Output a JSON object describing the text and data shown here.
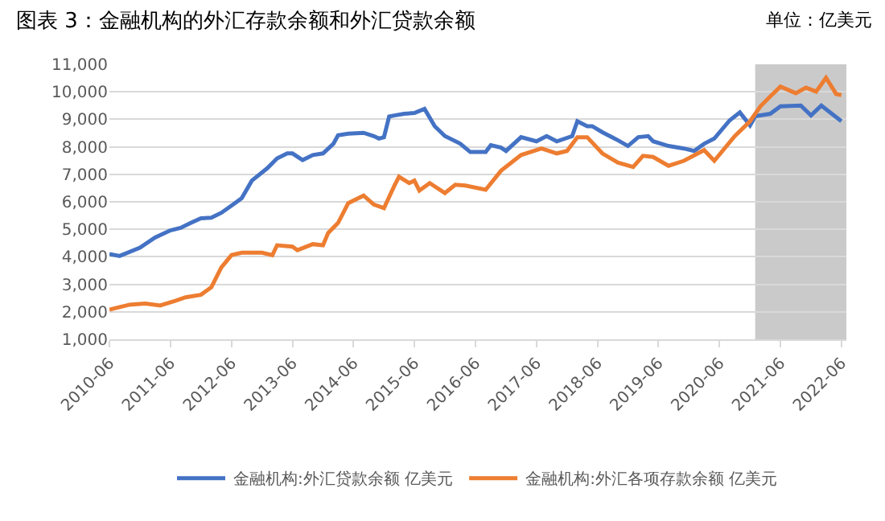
{
  "chart_data": {
    "type": "line",
    "title": "图表 3：金融机构的外汇存款余额和外汇贷款余额",
    "annotations": [
      "单位：亿美元"
    ],
    "series": [
      {
        "name": "金融机构:外汇贷款余额 亿美元",
        "color": "#4472c4",
        "x": [
          "2010-06",
          "2010-08",
          "2010-12",
          "2011-03",
          "2011-06",
          "2011-08",
          "2011-10",
          "2011-12",
          "2012-02",
          "2012-04",
          "2012-06",
          "2012-08",
          "2012-10",
          "2013-01",
          "2013-03",
          "2013-05",
          "2013-06",
          "2013-08",
          "2013-10",
          "2013-12",
          "2014-02",
          "2014-03",
          "2014-05",
          "2014-08",
          "2014-10",
          "2014-11",
          "2014-12",
          "2015-01",
          "2015-02",
          "2015-04",
          "2015-06",
          "2015-08",
          "2015-10",
          "2015-12",
          "2016-03",
          "2016-05",
          "2016-08",
          "2016-09",
          "2016-11",
          "2016-12",
          "2017-03",
          "2017-06",
          "2017-08",
          "2017-10",
          "2018-01",
          "2018-02",
          "2018-04",
          "2018-05",
          "2018-07",
          "2018-10",
          "2018-12",
          "2019-02",
          "2019-04",
          "2019-05",
          "2019-08",
          "2019-11",
          "2020-01",
          "2020-03",
          "2020-05",
          "2020-08",
          "2020-10",
          "2020-12",
          "2021-01",
          "2021-04",
          "2021-06",
          "2021-10",
          "2021-12",
          "2022-02",
          "2022-06"
        ],
        "values": [
          4100,
          4030,
          4330,
          4700,
          4960,
          5050,
          5230,
          5400,
          5420,
          5600,
          5860,
          6130,
          6770,
          7220,
          7580,
          7760,
          7760,
          7520,
          7700,
          7760,
          8110,
          8420,
          8480,
          8510,
          8390,
          8300,
          8350,
          9100,
          9140,
          9200,
          9230,
          9380,
          8750,
          8390,
          8120,
          7810,
          7810,
          8060,
          7970,
          7850,
          8350,
          8200,
          8390,
          8200,
          8390,
          8930,
          8750,
          8750,
          8530,
          8240,
          8030,
          8350,
          8390,
          8200,
          8030,
          7940,
          7850,
          8110,
          8300,
          8960,
          9250,
          8780,
          9110,
          9200,
          9470,
          9500,
          9140,
          9500,
          8930
        ]
      },
      {
        "name": "金融机构:外汇各项存款余额 亿美元",
        "color": "#ed7d31",
        "x": [
          "2010-06",
          "2010-10",
          "2011-01",
          "2011-04",
          "2011-07",
          "2011-09",
          "2011-12",
          "2012-02",
          "2012-04",
          "2012-06",
          "2012-08",
          "2012-12",
          "2013-02",
          "2013-03",
          "2013-06",
          "2013-07",
          "2013-10",
          "2013-12",
          "2014-01",
          "2014-03",
          "2014-05",
          "2014-08",
          "2014-10",
          "2014-12",
          "2015-02",
          "2015-03",
          "2015-05",
          "2015-06",
          "2015-07",
          "2015-09",
          "2015-12",
          "2016-02",
          "2016-04",
          "2016-08",
          "2016-11",
          "2017-03",
          "2017-07",
          "2017-10",
          "2017-12",
          "2018-02",
          "2018-04",
          "2018-07",
          "2018-10",
          "2019-01",
          "2019-03",
          "2019-05",
          "2019-08",
          "2019-11",
          "2020-03",
          "2020-05",
          "2020-09",
          "2020-12",
          "2021-02",
          "2021-04",
          "2021-06",
          "2021-09",
          "2021-11",
          "2022-01",
          "2022-03",
          "2022-05",
          "2022-06"
        ],
        "values": [
          2080,
          2260,
          2300,
          2230,
          2400,
          2530,
          2620,
          2890,
          3610,
          4060,
          4150,
          4150,
          4060,
          4420,
          4370,
          4240,
          4460,
          4420,
          4870,
          5230,
          5950,
          6230,
          5900,
          5770,
          6580,
          6910,
          6680,
          6770,
          6410,
          6680,
          6320,
          6620,
          6590,
          6440,
          7130,
          7700,
          7940,
          7760,
          7850,
          8350,
          8350,
          7760,
          7430,
          7270,
          7670,
          7630,
          7310,
          7490,
          7880,
          7490,
          8390,
          8930,
          9470,
          9830,
          10190,
          9950,
          10150,
          10010,
          10510,
          9920,
          9880
        ]
      }
    ],
    "bands": [
      {
        "axis": "x",
        "from": "2021-01",
        "to": "2022-07",
        "color": "#a6a6a6"
      }
    ],
    "xlim": [
      "2010-06",
      "2022-07"
    ],
    "xticks": [
      {
        "value": "2010-06",
        "label": "2010-06"
      },
      {
        "value": "2011-06",
        "label": "2011-06"
      },
      {
        "value": "2012-06",
        "label": "2012-06"
      },
      {
        "value": "2013-06",
        "label": "2013-06"
      },
      {
        "value": "2014-06",
        "label": "2014-06"
      },
      {
        "value": "2015-06",
        "label": "2015-06"
      },
      {
        "value": "2016-06",
        "label": "2016-06"
      },
      {
        "value": "2017-06",
        "label": "2017-06"
      },
      {
        "value": "2018-06",
        "label": "2018-06"
      },
      {
        "value": "2019-06",
        "label": "2019-06"
      },
      {
        "value": "2020-06",
        "label": "2020-06"
      },
      {
        "value": "2021-06",
        "label": "2021-06"
      },
      {
        "value": "2022-06",
        "label": "2022-06"
      }
    ],
    "ylim": [
      1000,
      11000
    ],
    "yticks": [
      {
        "value": 1000,
        "label": "1,000"
      },
      {
        "value": 2000,
        "label": "2,000"
      },
      {
        "value": 3000,
        "label": "3,000"
      },
      {
        "value": 4000,
        "label": "4,000"
      },
      {
        "value": 5000,
        "label": "5,000"
      },
      {
        "value": 6000,
        "label": "6,000"
      },
      {
        "value": 7000,
        "label": "7,000"
      },
      {
        "value": 8000,
        "label": "8,000"
      },
      {
        "value": 9000,
        "label": "9,000"
      },
      {
        "value": 10000,
        "label": "10,000"
      },
      {
        "value": 11000,
        "label": "11,000"
      }
    ],
    "grid": "y",
    "legend": "bottom",
    "marker": "none",
    "line_style": "solid"
  }
}
